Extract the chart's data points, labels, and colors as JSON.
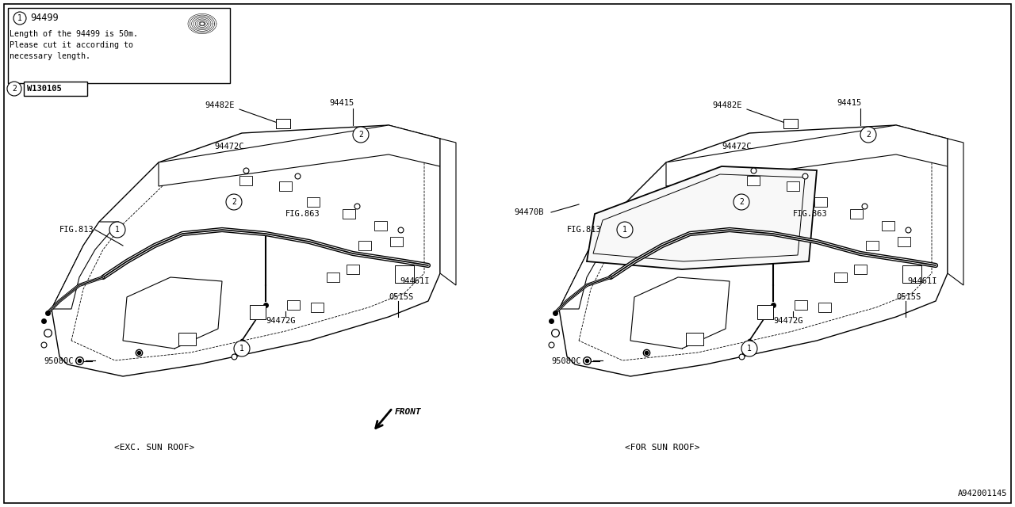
{
  "bg_color": "#ffffff",
  "line_color": "#000000",
  "diagram_id": "A942001145",
  "font_size": 8,
  "font_family": "monospace",
  "note_box": {
    "part_number": "94499",
    "lines": [
      "Length of the 94499 is 50m.",
      "Please cut it according to",
      "necessary length."
    ]
  },
  "warning_part": "W130105",
  "left_label": "<EXC. SUN ROOF>",
  "right_label": "<FOR SUN ROOF>",
  "front_label": "FRONT"
}
